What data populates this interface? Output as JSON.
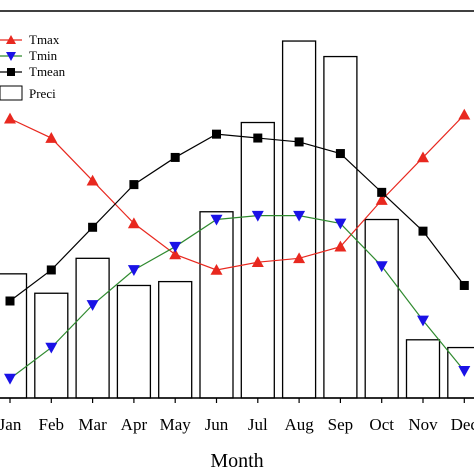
{
  "chart_data": {
    "type": "bar",
    "xlabel": "Month",
    "categories": [
      "Jan",
      "Feb",
      "Mar",
      "Apr",
      "May",
      "Jun",
      "Jul",
      "Aug",
      "Sep",
      "Oct",
      "Nov",
      "Dec"
    ],
    "bars": {
      "name": "Preci",
      "values": [
        32,
        27,
        36,
        29,
        30,
        48,
        71,
        92,
        88,
        46,
        15,
        13
      ],
      "fill": "#ffffff",
      "stroke": "#000000"
    },
    "series": [
      {
        "name": "Tmax",
        "values": [
          72,
          67,
          56,
          45,
          37,
          33,
          35,
          36,
          39,
          51,
          62,
          73
        ],
        "color": "#e8281f",
        "marker": "triangle-up"
      },
      {
        "name": "Tmin",
        "values": [
          5,
          13,
          24,
          33,
          39,
          46,
          47,
          47,
          45,
          34,
          20,
          7
        ],
        "color": "#1a12e6",
        "marker": "triangle-down",
        "line_color": "#2f8a2f"
      },
      {
        "name": "Tmean",
        "values": [
          25,
          33,
          44,
          55,
          62,
          68,
          67,
          66,
          63,
          53,
          43,
          29
        ],
        "color": "#000000",
        "marker": "square"
      }
    ],
    "legend_position": "top-left",
    "grid": false
  }
}
